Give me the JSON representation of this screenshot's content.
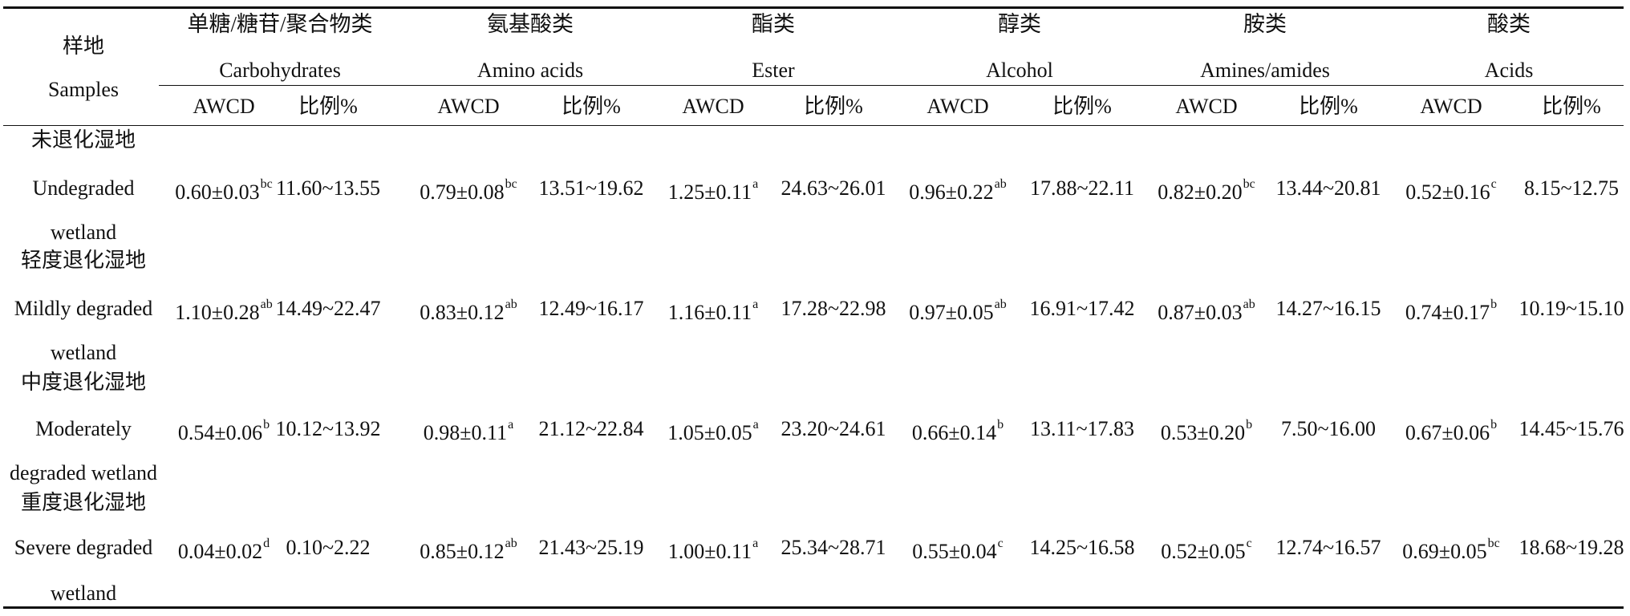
{
  "table": {
    "sample_header": {
      "zh": "样地",
      "en": "Samples"
    },
    "categories": [
      {
        "zh": "单糖/糖苷/聚合物类",
        "en": "Carbohydrates"
      },
      {
        "zh": "氨基酸类",
        "en": "Amino acids"
      },
      {
        "zh": "酯类",
        "en": "Ester"
      },
      {
        "zh": "醇类",
        "en": "Alcohol"
      },
      {
        "zh": "胺类",
        "en": "Amines/amides"
      },
      {
        "zh": "酸类",
        "en": "Acids"
      }
    ],
    "sub_headers": {
      "awcd": "AWCD",
      "ratio": "比例%"
    },
    "rows": [
      {
        "sample": [
          "未退化湿地",
          "Undegraded",
          "wetland"
        ],
        "cells": [
          {
            "awcd": "0.60±0.03",
            "sup": "bc",
            "ratio": "11.60~13.55"
          },
          {
            "awcd": "0.79±0.08",
            "sup": "bc",
            "ratio": "13.51~19.62"
          },
          {
            "awcd": "1.25±0.11",
            "sup": "a",
            "ratio": "24.63~26.01"
          },
          {
            "awcd": "0.96±0.22",
            "sup": "ab",
            "ratio": "17.88~22.11"
          },
          {
            "awcd": "0.82±0.20",
            "sup": "bc",
            "ratio": "13.44~20.81"
          },
          {
            "awcd": "0.52±0.16",
            "sup": "c",
            "ratio": "8.15~12.75"
          }
        ]
      },
      {
        "sample": [
          "轻度退化湿地",
          "Mildly degraded",
          "wetland"
        ],
        "cells": [
          {
            "awcd": "1.10±0.28",
            "sup": "ab",
            "ratio": "14.49~22.47"
          },
          {
            "awcd": "0.83±0.12",
            "sup": "ab",
            "ratio": "12.49~16.17"
          },
          {
            "awcd": "1.16±0.11",
            "sup": "a",
            "ratio": "17.28~22.98"
          },
          {
            "awcd": "0.97±0.05",
            "sup": "ab",
            "ratio": "16.91~17.42"
          },
          {
            "awcd": "0.87±0.03",
            "sup": "ab",
            "ratio": "14.27~16.15"
          },
          {
            "awcd": "0.74±0.17",
            "sup": "b",
            "ratio": "10.19~15.10"
          }
        ]
      },
      {
        "sample": [
          "中度退化湿地",
          "Moderately",
          "degraded wetland"
        ],
        "cells": [
          {
            "awcd": "0.54±0.06",
            "sup": "b",
            "ratio": "10.12~13.92"
          },
          {
            "awcd": "0.98±0.11",
            "sup": "a",
            "ratio": "21.12~22.84"
          },
          {
            "awcd": "1.05±0.05",
            "sup": "a",
            "ratio": "23.20~24.61"
          },
          {
            "awcd": "0.66±0.14",
            "sup": "b",
            "ratio": "13.11~17.83"
          },
          {
            "awcd": "0.53±0.20",
            "sup": "b",
            "ratio": "7.50~16.00"
          },
          {
            "awcd": "0.67±0.06",
            "sup": "b",
            "ratio": "14.45~15.76"
          }
        ]
      },
      {
        "sample": [
          "重度退化湿地",
          "Severe degraded",
          "wetland"
        ],
        "cells": [
          {
            "awcd": "0.04±0.02",
            "sup": "d",
            "ratio": "0.10~2.22"
          },
          {
            "awcd": "0.85±0.12",
            "sup": "ab",
            "ratio": "21.43~25.19"
          },
          {
            "awcd": "1.00±0.11",
            "sup": "a",
            "ratio": "25.34~28.71"
          },
          {
            "awcd": "0.55±0.04",
            "sup": "c",
            "ratio": "14.25~16.58"
          },
          {
            "awcd": "0.52±0.05",
            "sup": "c",
            "ratio": "12.74~16.57"
          },
          {
            "awcd": "0.69±0.05",
            "sup": "bc",
            "ratio": "18.68~19.28"
          }
        ]
      }
    ]
  }
}
